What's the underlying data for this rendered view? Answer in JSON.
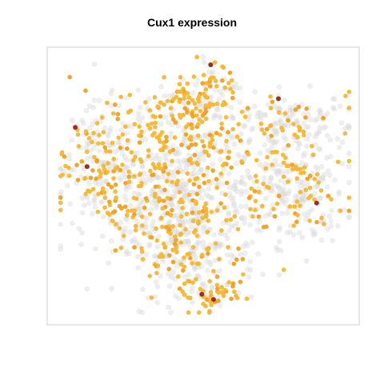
{
  "chart_data": {
    "type": "scatter",
    "title": "Cux1 expression",
    "xlabel": "",
    "ylabel": "",
    "legend": "none",
    "axes_visible": false,
    "grid": false,
    "colors": {
      "background_cells": "#d9d9d9",
      "low": "#f6b733",
      "mid": "#f0a020",
      "high": "#9e2f1e",
      "frame": "#cfcfcf"
    },
    "clusters": [
      {
        "name": "top",
        "cx": 0.46,
        "cy": 0.8,
        "sx": 0.09,
        "sy": 0.05,
        "n_bg": 70,
        "n_expr": 70
      },
      {
        "name": "top-peak",
        "cx": 0.52,
        "cy": 0.91,
        "sx": 0.04,
        "sy": 0.04,
        "n_bg": 15,
        "n_expr": 30
      },
      {
        "name": "upper-right",
        "cx": 0.76,
        "cy": 0.74,
        "sx": 0.12,
        "sy": 0.06,
        "n_bg": 140,
        "n_expr": 45
      },
      {
        "name": "upper-center",
        "cx": 0.45,
        "cy": 0.64,
        "sx": 0.09,
        "sy": 0.05,
        "n_bg": 60,
        "n_expr": 70
      },
      {
        "name": "left",
        "cx": 0.16,
        "cy": 0.57,
        "sx": 0.08,
        "sy": 0.12,
        "n_bg": 160,
        "n_expr": 110
      },
      {
        "name": "center",
        "cx": 0.42,
        "cy": 0.45,
        "sx": 0.14,
        "sy": 0.1,
        "n_bg": 320,
        "n_expr": 140
      },
      {
        "name": "right",
        "cx": 0.8,
        "cy": 0.47,
        "sx": 0.09,
        "sy": 0.1,
        "n_bg": 200,
        "n_expr": 70
      },
      {
        "name": "lower-center",
        "cx": 0.44,
        "cy": 0.24,
        "sx": 0.12,
        "sy": 0.08,
        "n_bg": 180,
        "n_expr": 75
      },
      {
        "name": "bottom",
        "cx": 0.52,
        "cy": 0.08,
        "sx": 0.05,
        "sy": 0.03,
        "n_bg": 20,
        "n_expr": 45
      }
    ],
    "high_points": [
      {
        "x": 0.52,
        "y": 0.96
      },
      {
        "x": 0.75,
        "y": 0.83
      },
      {
        "x": 0.06,
        "y": 0.72
      },
      {
        "x": 0.1,
        "y": 0.57
      },
      {
        "x": 0.88,
        "y": 0.43
      },
      {
        "x": 0.49,
        "y": 0.08
      },
      {
        "x": 0.53,
        "y": 0.06
      }
    ]
  }
}
